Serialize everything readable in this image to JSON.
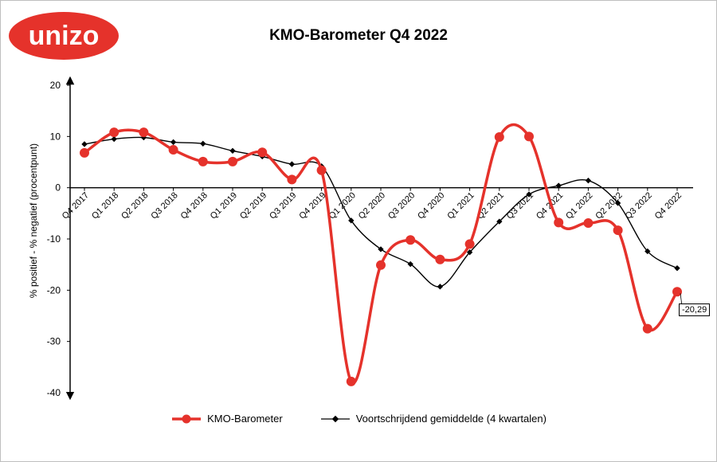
{
  "logo": {
    "text": "unizo",
    "color": "#e5322b"
  },
  "chart_data": {
    "type": "line",
    "title": "KMO-Barometer Q4 2022",
    "ylabel": "% positief - % negatief (procentpunt)",
    "xlabel": "",
    "ylim": [
      -40,
      20
    ],
    "yticks": [
      20,
      10,
      0,
      -10,
      -20,
      -30,
      -40
    ],
    "categories": [
      "Q4 2017",
      "Q1 2018",
      "Q2 2018",
      "Q3 2018",
      "Q4 2018",
      "Q1 2019",
      "Q2 2019",
      "Q3 2019",
      "Q4 2019",
      "Q1 2020",
      "Q2 2020",
      "Q3 2020",
      "Q4 2020",
      "Q1 2021",
      "Q2 2021",
      "Q3 2021",
      "Q4 2021",
      "Q1 2022",
      "Q2 2022",
      "Q3 2022",
      "Q4 2022"
    ],
    "series": [
      {
        "name": "KMO-Barometer",
        "color": "#e5322b",
        "smooth": true,
        "values": [
          6.8,
          10.8,
          10.8,
          7.4,
          5.1,
          5.1,
          6.9,
          1.6,
          3.4,
          -37.8,
          -15.1,
          -10.2,
          -14.0,
          -11.0,
          9.9,
          10.0,
          -6.8,
          -6.9,
          -8.3,
          -27.5,
          -20.29
        ]
      },
      {
        "name": "Voortschrijdend gemiddelde (4 kwartalen)",
        "color": "#000000",
        "smooth": true,
        "values": [
          8.5,
          9.5,
          9.8,
          8.9,
          8.6,
          7.2,
          6.1,
          4.6,
          4.2,
          -6.4,
          -12.0,
          -14.9,
          -19.3,
          -12.6,
          -6.6,
          -1.3,
          0.4,
          1.4,
          -3.0,
          -12.4,
          -15.7
        ]
      }
    ],
    "annotation": {
      "label": "-20,29",
      "series": "KMO-Barometer",
      "index": 20
    },
    "legend_position": "bottom",
    "grid": false
  }
}
